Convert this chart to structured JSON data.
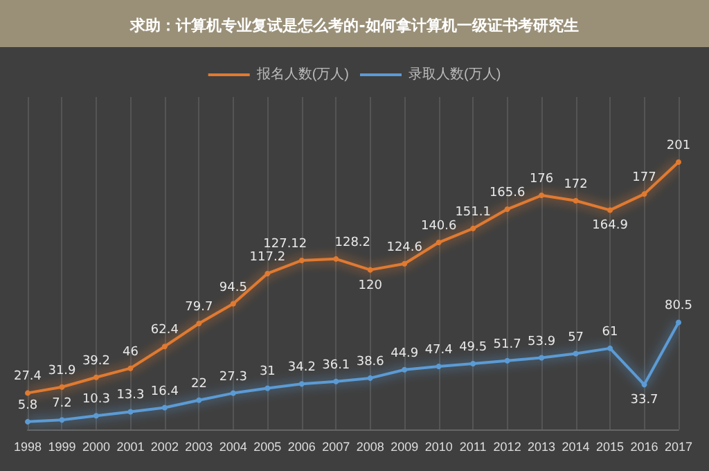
{
  "chart_data": {
    "type": "line",
    "title": "求助：计算机专业复试是怎么考的-如何拿计算机一级证书考研究生",
    "categories": [
      "1998",
      "1999",
      "2000",
      "2001",
      "2002",
      "2003",
      "2004",
      "2005",
      "2006",
      "2007",
      "2008",
      "2009",
      "2010",
      "2011",
      "2012",
      "2013",
      "2014",
      "2015",
      "2016",
      "2017"
    ],
    "series": [
      {
        "name": "报名人数(万人)",
        "color": "#e07a30",
        "values": [
          27.4,
          31.9,
          39.2,
          46,
          62.4,
          79.7,
          94.5,
          117.2,
          127.12,
          128.2,
          120,
          124.6,
          140.6,
          151.1,
          165.6,
          176,
          172,
          164.9,
          177,
          201
        ]
      },
      {
        "name": "录取人数(万人)",
        "color": "#5b9bd5",
        "values": [
          5.8,
          7.2,
          10.3,
          13.3,
          16.4,
          22,
          27.3,
          31,
          34.2,
          36.1,
          38.6,
          44.9,
          47.4,
          49.5,
          51.7,
          53.9,
          57,
          61,
          33.7,
          80.5
        ]
      }
    ],
    "data_labels": true,
    "legend": "top",
    "grid": "x",
    "marker": "circle",
    "line_style": "solid"
  }
}
